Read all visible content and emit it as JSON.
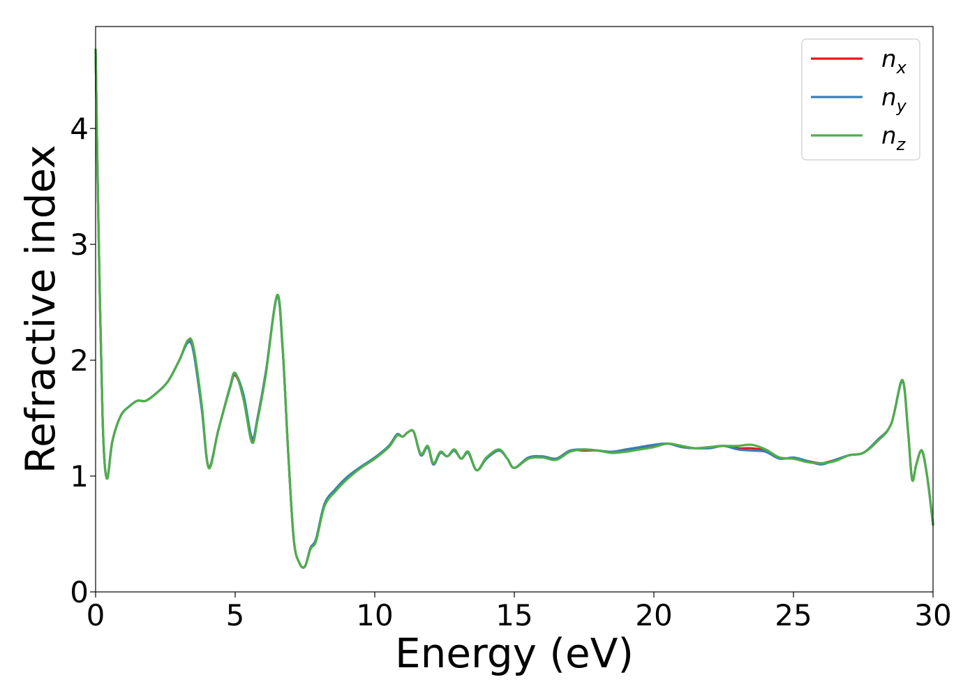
{
  "chart_data": {
    "type": "line",
    "xlabel": "Energy (eV)",
    "ylabel": "Refractive index",
    "xlim": [
      0,
      30
    ],
    "ylim": [
      0,
      4.88
    ],
    "xticks": [
      0,
      5,
      10,
      15,
      20,
      25,
      30
    ],
    "xtick_labels": [
      "0",
      "5",
      "10",
      "15",
      "20",
      "25",
      "30"
    ],
    "yticks": [
      0,
      1,
      2,
      3,
      4
    ],
    "ytick_labels": [
      "0",
      "1",
      "2",
      "3",
      "4"
    ],
    "grid": false,
    "legend_position": "top-right",
    "series": [
      {
        "name": "n_x",
        "name_main": "n",
        "name_sub": "x",
        "color": "#e31a1c",
        "x": [
          0,
          0.1,
          0.25,
          0.4,
          0.6,
          0.9,
          1.2,
          1.5,
          1.8,
          2.2,
          2.6,
          3.0,
          3.3,
          3.5,
          3.8,
          4.05,
          4.4,
          4.8,
          5.0,
          5.3,
          5.6,
          5.8,
          6.1,
          6.5,
          6.7,
          6.9,
          7.1,
          7.3,
          7.5,
          7.7,
          7.9,
          8.2,
          8.6,
          9.0,
          9.5,
          10.0,
          10.5,
          10.8,
          11.0,
          11.2,
          11.4,
          11.65,
          11.9,
          12.1,
          12.35,
          12.6,
          12.85,
          13.1,
          13.35,
          13.65,
          14.0,
          14.45,
          14.75,
          15.0,
          15.5,
          16.0,
          16.5,
          17.0,
          17.5,
          18.0,
          18.5,
          19.0,
          19.5,
          20.0,
          20.5,
          21.0,
          21.5,
          22.0,
          22.5,
          23.0,
          23.5,
          24.0,
          24.5,
          25.0,
          25.5,
          26.0,
          26.5,
          27.0,
          27.5,
          28.0,
          28.5,
          28.9,
          29.1,
          29.25,
          29.4,
          29.6,
          29.8,
          30.0
        ],
        "y": [
          4.68,
          3.2,
          1.5,
          0.98,
          1.3,
          1.52,
          1.6,
          1.65,
          1.65,
          1.72,
          1.82,
          2.0,
          2.16,
          2.1,
          1.6,
          1.08,
          1.4,
          1.75,
          1.87,
          1.68,
          1.3,
          1.5,
          1.9,
          2.55,
          2.1,
          1.2,
          0.45,
          0.25,
          0.22,
          0.38,
          0.45,
          0.75,
          0.88,
          0.98,
          1.07,
          1.15,
          1.25,
          1.35,
          1.34,
          1.38,
          1.38,
          1.18,
          1.25,
          1.1,
          1.2,
          1.17,
          1.22,
          1.15,
          1.2,
          1.05,
          1.15,
          1.22,
          1.15,
          1.07,
          1.15,
          1.17,
          1.15,
          1.22,
          1.22,
          1.22,
          1.2,
          1.22,
          1.24,
          1.26,
          1.28,
          1.25,
          1.24,
          1.25,
          1.26,
          1.24,
          1.24,
          1.22,
          1.16,
          1.15,
          1.13,
          1.11,
          1.14,
          1.18,
          1.2,
          1.3,
          1.45,
          1.82,
          1.4,
          0.97,
          1.1,
          1.22,
          0.98,
          0.58
        ]
      },
      {
        "name": "n_y",
        "name_main": "n",
        "name_sub": "y",
        "color": "#377eb8",
        "x": [
          0,
          0.1,
          0.25,
          0.4,
          0.6,
          0.9,
          1.2,
          1.5,
          1.8,
          2.2,
          2.6,
          3.0,
          3.3,
          3.5,
          3.8,
          4.05,
          4.4,
          4.8,
          5.0,
          5.3,
          5.6,
          5.8,
          6.1,
          6.5,
          6.7,
          6.9,
          7.1,
          7.3,
          7.5,
          7.7,
          7.9,
          8.2,
          8.6,
          9.0,
          9.5,
          10.0,
          10.5,
          10.8,
          11.0,
          11.2,
          11.4,
          11.65,
          11.9,
          12.1,
          12.35,
          12.6,
          12.85,
          13.1,
          13.35,
          13.65,
          14.0,
          14.45,
          14.75,
          15.0,
          15.5,
          16.0,
          16.5,
          17.0,
          17.5,
          18.0,
          18.5,
          19.0,
          19.5,
          20.0,
          20.5,
          21.0,
          21.5,
          22.0,
          22.5,
          23.0,
          23.5,
          24.0,
          24.5,
          25.0,
          25.5,
          26.0,
          26.5,
          27.0,
          27.5,
          28.0,
          28.5,
          28.9,
          29.1,
          29.25,
          29.4,
          29.6,
          29.8,
          30.0
        ],
        "y": [
          4.68,
          3.2,
          1.5,
          0.98,
          1.3,
          1.52,
          1.6,
          1.65,
          1.65,
          1.72,
          1.82,
          2.0,
          2.15,
          2.08,
          1.58,
          1.08,
          1.4,
          1.75,
          1.88,
          1.7,
          1.33,
          1.5,
          1.9,
          2.55,
          2.1,
          1.2,
          0.45,
          0.25,
          0.22,
          0.38,
          0.46,
          0.76,
          0.89,
          0.99,
          1.08,
          1.16,
          1.26,
          1.36,
          1.34,
          1.38,
          1.38,
          1.18,
          1.25,
          1.1,
          1.2,
          1.17,
          1.22,
          1.15,
          1.2,
          1.05,
          1.15,
          1.22,
          1.15,
          1.07,
          1.16,
          1.17,
          1.15,
          1.22,
          1.23,
          1.22,
          1.21,
          1.23,
          1.25,
          1.27,
          1.28,
          1.25,
          1.24,
          1.24,
          1.26,
          1.23,
          1.22,
          1.21,
          1.15,
          1.16,
          1.13,
          1.1,
          1.14,
          1.18,
          1.2,
          1.31,
          1.45,
          1.82,
          1.4,
          0.97,
          1.1,
          1.22,
          0.98,
          0.58
        ]
      },
      {
        "name": "n_z",
        "name_main": "n",
        "name_sub": "z",
        "color": "#4daf4a",
        "x": [
          0,
          0.1,
          0.25,
          0.4,
          0.6,
          0.9,
          1.2,
          1.5,
          1.8,
          2.2,
          2.6,
          3.0,
          3.3,
          3.5,
          3.8,
          4.05,
          4.4,
          4.8,
          5.0,
          5.3,
          5.6,
          5.8,
          6.1,
          6.5,
          6.7,
          6.9,
          7.1,
          7.3,
          7.5,
          7.7,
          7.9,
          8.2,
          8.6,
          9.0,
          9.5,
          10.0,
          10.5,
          10.8,
          11.0,
          11.2,
          11.4,
          11.65,
          11.9,
          12.1,
          12.35,
          12.6,
          12.85,
          13.1,
          13.35,
          13.65,
          14.0,
          14.45,
          14.75,
          15.0,
          15.5,
          16.0,
          16.5,
          17.0,
          17.5,
          18.0,
          18.5,
          19.0,
          19.5,
          20.0,
          20.5,
          21.0,
          21.5,
          22.0,
          22.5,
          23.0,
          23.5,
          24.0,
          24.5,
          25.0,
          25.5,
          26.0,
          26.5,
          27.0,
          27.5,
          28.0,
          28.5,
          28.9,
          29.1,
          29.25,
          29.4,
          29.6,
          29.8,
          30.0
        ],
        "y": [
          4.68,
          3.2,
          1.5,
          0.98,
          1.3,
          1.52,
          1.6,
          1.65,
          1.65,
          1.72,
          1.82,
          2.0,
          2.17,
          2.12,
          1.62,
          1.07,
          1.4,
          1.76,
          1.89,
          1.66,
          1.29,
          1.48,
          1.88,
          2.56,
          2.12,
          1.2,
          0.45,
          0.25,
          0.22,
          0.37,
          0.44,
          0.74,
          0.87,
          0.97,
          1.07,
          1.15,
          1.25,
          1.35,
          1.34,
          1.38,
          1.38,
          1.19,
          1.26,
          1.11,
          1.21,
          1.17,
          1.23,
          1.15,
          1.21,
          1.05,
          1.16,
          1.23,
          1.15,
          1.07,
          1.15,
          1.16,
          1.14,
          1.21,
          1.23,
          1.22,
          1.2,
          1.21,
          1.23,
          1.25,
          1.28,
          1.26,
          1.24,
          1.25,
          1.26,
          1.26,
          1.27,
          1.23,
          1.16,
          1.15,
          1.12,
          1.11,
          1.13,
          1.18,
          1.2,
          1.3,
          1.45,
          1.83,
          1.4,
          0.97,
          1.1,
          1.22,
          0.98,
          0.58
        ]
      }
    ]
  }
}
